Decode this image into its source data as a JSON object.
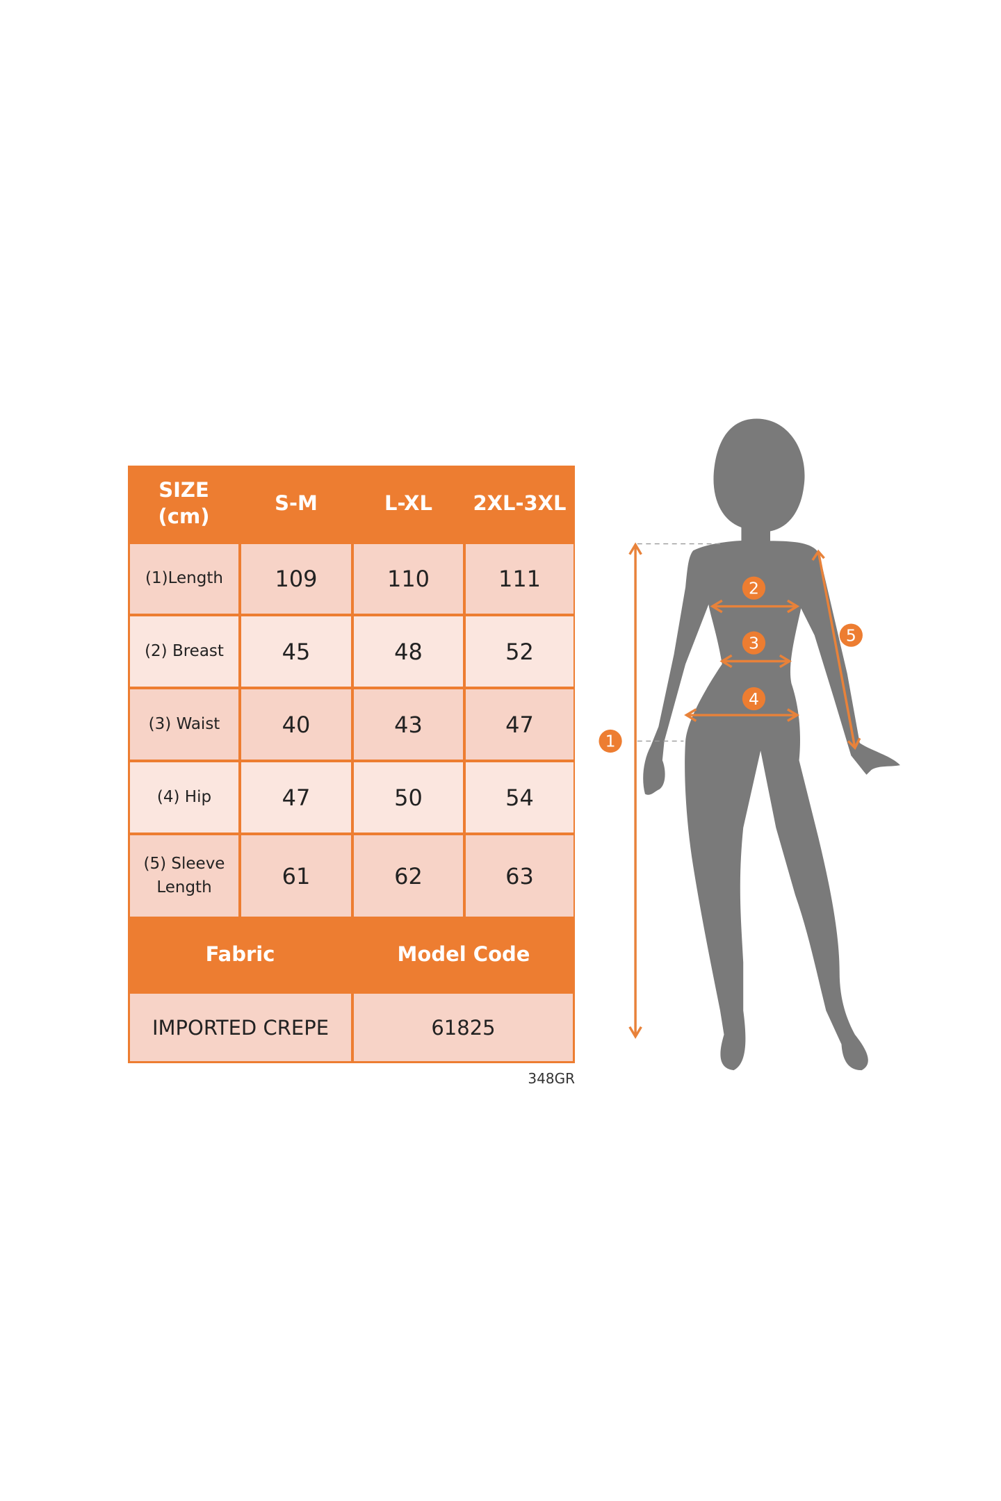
{
  "table": {
    "header": [
      "SIZE\n(cm)",
      "S-M",
      "L-XL",
      "2XL-3XL"
    ],
    "rows": [
      {
        "label": "(1)Length",
        "values": [
          "109",
          "110",
          "111"
        ]
      },
      {
        "label": "(2) Breast",
        "values": [
          "45",
          "48",
          "52"
        ]
      },
      {
        "label": "(3) Waist",
        "values": [
          "40",
          "43",
          "47"
        ]
      },
      {
        "label": "(4) Hip",
        "values": [
          "47",
          "50",
          "54"
        ]
      },
      {
        "label": "(5) Sleeve\nLength",
        "values": [
          "61",
          "62",
          "63"
        ]
      }
    ],
    "footer_headers": [
      "Fabric",
      "Model Code"
    ],
    "footer_values": [
      "IMPORTED CREPE",
      "61825"
    ]
  },
  "code_label": "348GR",
  "figure": {
    "markers": [
      "1",
      "2",
      "3",
      "4",
      "5"
    ],
    "colors": {
      "accent": "#ED7D31",
      "silhouette": "#7A7A7A",
      "cell_dark": "#F7D3C7",
      "cell_light": "#FBE6DF"
    }
  }
}
